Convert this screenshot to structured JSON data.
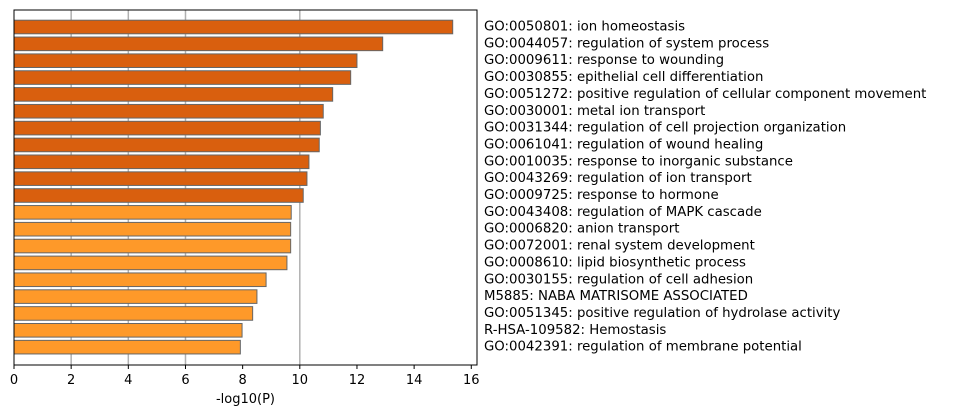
{
  "chart_data": {
    "type": "bar",
    "orientation": "horizontal",
    "xlabel": "-log10(P)",
    "xlim": [
      0,
      16.2
    ],
    "xticks": [
      0,
      2,
      4,
      6,
      8,
      10,
      12,
      14,
      16
    ],
    "grid": "vertical, at 2, 4, 6, 10",
    "colors": {
      "dark": "#d95f0e",
      "light": "#fe9929",
      "edge": "#666666",
      "grid": "#b0b0b0"
    },
    "categories": [
      "GO:0050801: ion homeostasis",
      "GO:0044057: regulation of system process",
      "GO:0009611: response to wounding",
      "GO:0030855: epithelial cell differentiation",
      "GO:0051272: positive regulation of cellular component movement",
      "GO:0030001: metal ion transport",
      "GO:0031344: regulation of cell projection organization",
      "GO:0061041: regulation of wound healing",
      "GO:0010035: response to inorganic substance",
      "GO:0043269: regulation of ion transport",
      "GO:0009725: response to hormone",
      "GO:0043408: regulation of MAPK cascade",
      "GO:0006820: anion transport",
      "GO:0072001: renal system development",
      "GO:0008610: lipid biosynthetic process",
      "GO:0030155: regulation of cell adhesion",
      "M5885: NABA MATRISOME ASSOCIATED",
      "GO:0051345: positive regulation of hydrolase activity",
      "R-HSA-109582: Hemostasis",
      "GO:0042391: regulation of membrane potential"
    ],
    "values": [
      15.35,
      12.9,
      12.0,
      11.78,
      11.15,
      10.82,
      10.72,
      10.68,
      10.32,
      10.25,
      10.12,
      9.7,
      9.68,
      9.68,
      9.55,
      8.82,
      8.5,
      8.35,
      7.98,
      7.92
    ],
    "color_group": [
      "dark",
      "dark",
      "dark",
      "dark",
      "dark",
      "dark",
      "dark",
      "dark",
      "dark",
      "dark",
      "dark",
      "light",
      "light",
      "light",
      "light",
      "light",
      "light",
      "light",
      "light",
      "light"
    ]
  }
}
